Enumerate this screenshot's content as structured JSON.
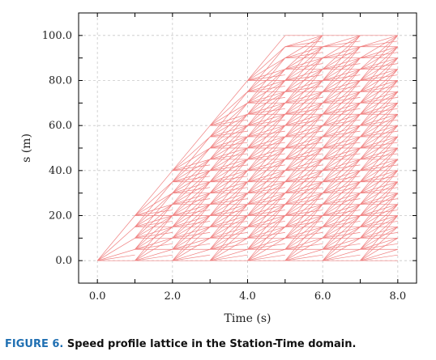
{
  "chart_data": {
    "type": "line",
    "title": "",
    "xlabel": "Time (s)",
    "ylabel": "s (m)",
    "xlim": [
      -0.5,
      8.5
    ],
    "ylim": [
      -10,
      110
    ],
    "x_ticks": [
      0,
      2,
      4,
      6,
      8
    ],
    "x_tick_labels": [
      "0.0",
      "2.0",
      "4.0",
      "6.0",
      "8.0"
    ],
    "y_ticks": [
      0,
      20,
      40,
      60,
      80,
      100
    ],
    "y_tick_labels": [
      "0.0",
      "20.0",
      "40.0",
      "60.0",
      "80.0",
      "100.0"
    ],
    "grid": true,
    "lattice": {
      "time_steps": [
        0,
        1,
        2,
        3,
        4,
        5,
        6,
        7,
        8
      ],
      "max_station_m": 100,
      "max_advance_per_step_m": 20,
      "line_color": "#f08080"
    }
  },
  "caption": {
    "label": "FIGURE 6.",
    "text": "Speed profile lattice in the Station-Time domain."
  }
}
